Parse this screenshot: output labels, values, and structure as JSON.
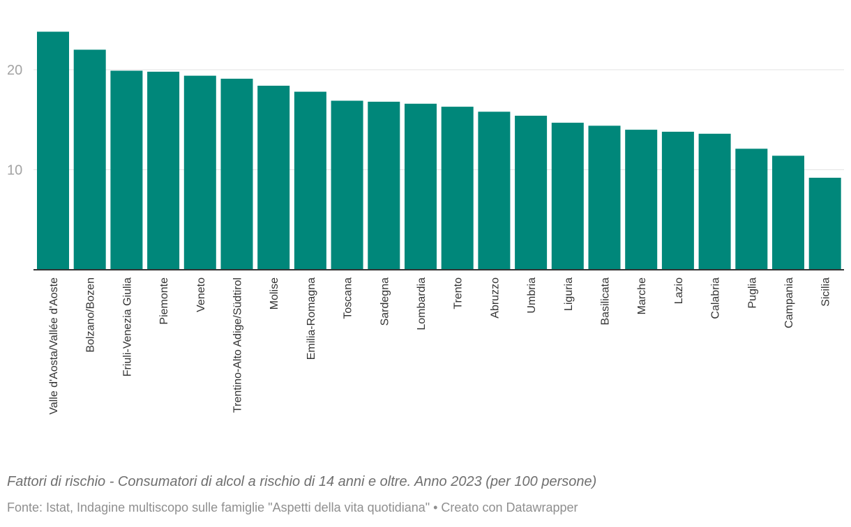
{
  "chart_data": {
    "type": "bar",
    "categories": [
      "Valle d'Aosta/Vallée d'Aoste",
      "Bolzano/Bozen",
      "Friuli-Venezia Giulia",
      "Piemonte",
      "Veneto",
      "Trentino-Alto Adige/Südtirol",
      "Molise",
      "Emilia-Romagna",
      "Toscana",
      "Sardegna",
      "Lombardia",
      "Trento",
      "Abruzzo",
      "Umbria",
      "Liguria",
      "Basilicata",
      "Marche",
      "Lazio",
      "Calabria",
      "Puglia",
      "Campania",
      "Sicilia"
    ],
    "values": [
      23.8,
      22.0,
      19.9,
      19.8,
      19.4,
      19.1,
      18.4,
      17.8,
      16.9,
      16.8,
      16.6,
      16.3,
      15.8,
      15.4,
      14.7,
      14.4,
      14.0,
      13.8,
      13.6,
      12.1,
      11.4,
      9.2
    ],
    "yticks": [
      10,
      20
    ],
    "ylim": [
      0,
      25
    ],
    "grid": true,
    "bar_color": "#00877a",
    "title": "",
    "xlabel": "",
    "ylabel": ""
  },
  "notes": {
    "description": "Fattori di rischio - Consumatori di alcol a rischio di 14 anni e oltre. Anno 2023 (per 100 persone)",
    "source": "Fonte: Istat, Indagine multiscopo sulle famiglie \"Aspetti della vita quotidiana\" • Creato con Datawrapper"
  }
}
